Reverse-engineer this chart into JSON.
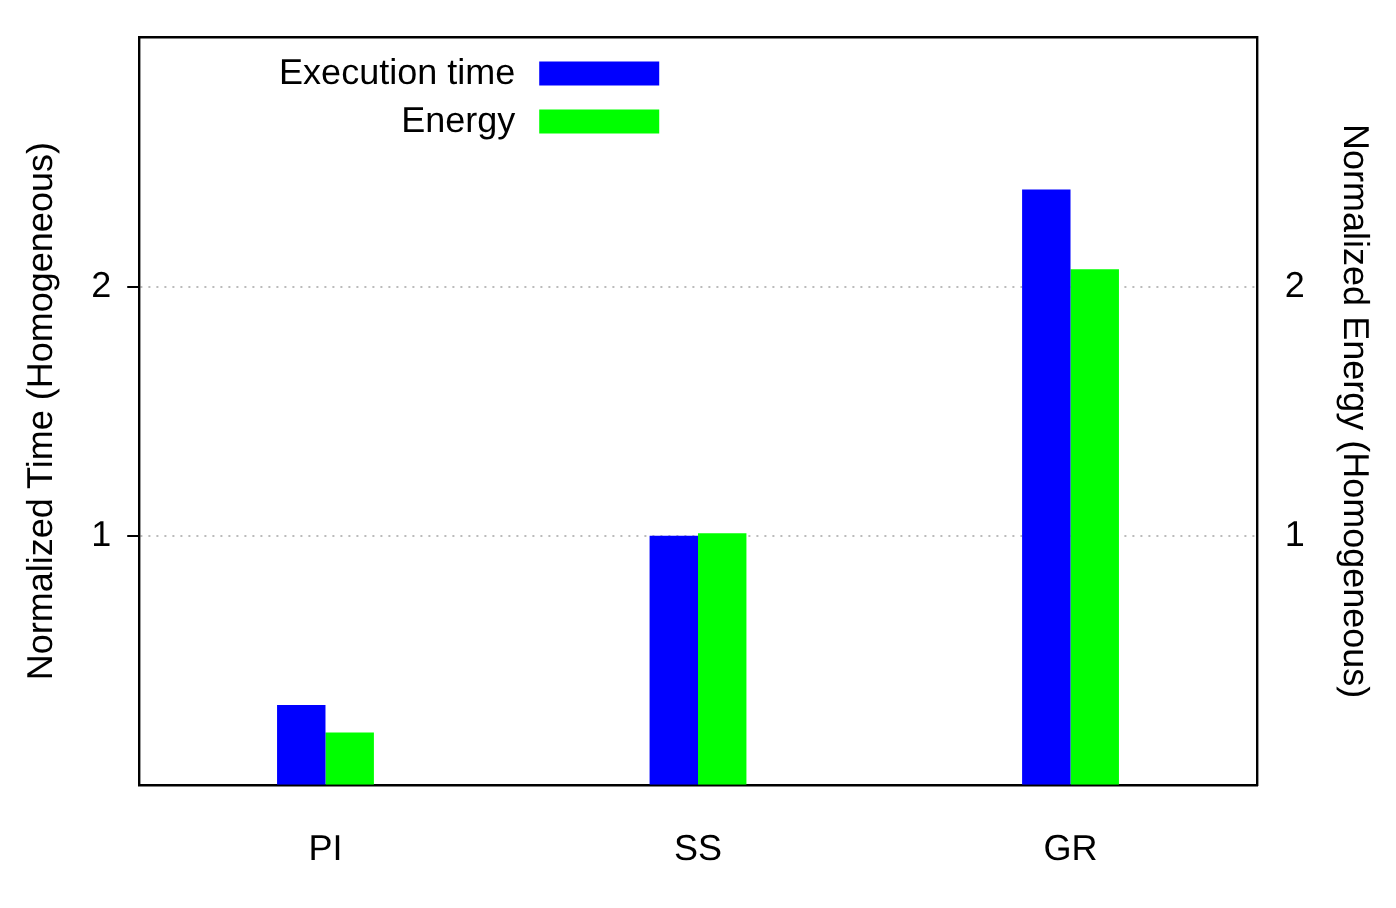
{
  "chart_data": {
    "type": "bar",
    "categories": [
      "PI",
      "SS",
      "GR"
    ],
    "series": [
      {
        "name": "Execution time",
        "color": "#0000ff",
        "values": [
          0.32,
          1.0,
          2.39
        ]
      },
      {
        "name": "Energy",
        "color": "#00ff00",
        "values": [
          0.21,
          1.01,
          2.07
        ],
        "axis": "y2"
      }
    ],
    "ylabel": "Normalized Time (Homogeneous)",
    "y2label": "Normalized Energy (Homogeneous)",
    "ylim": [
      0,
      3
    ],
    "yticks": [
      1,
      2
    ],
    "y2lim": [
      0,
      3
    ],
    "y2ticks": [
      1,
      2
    ],
    "grid": "y",
    "legend": "top left"
  }
}
